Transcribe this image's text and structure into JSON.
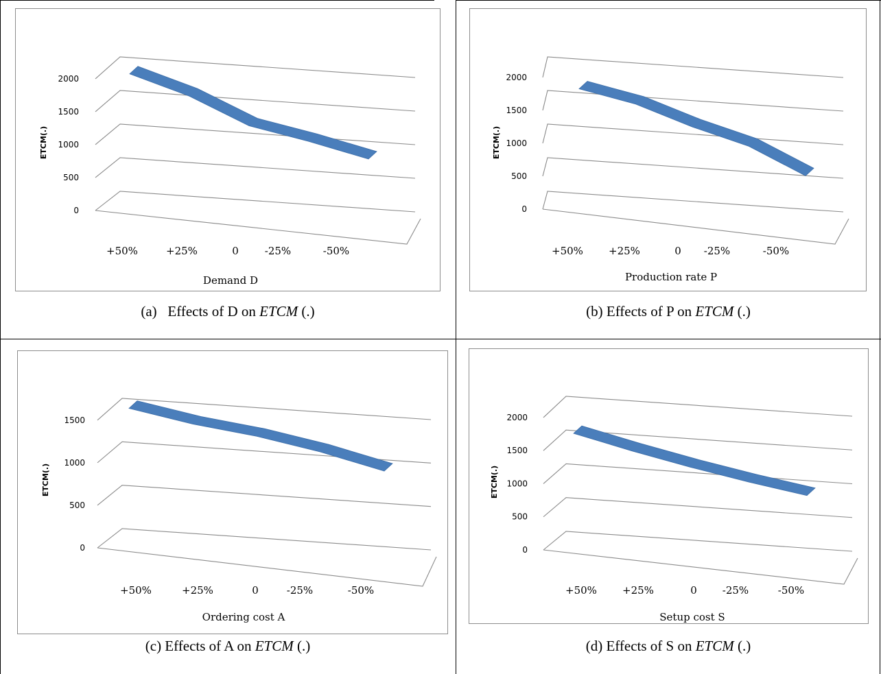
{
  "chart_data": [
    {
      "type": "line",
      "caption_prefix": "(a)   Effects of D on ",
      "caption_italic": "ETCM",
      "caption_suffix": " (.)",
      "xlabel": "Demand D",
      "ylabel": "ETCM(.)",
      "categories": [
        "+50%",
        "+25%",
        "0",
        "-25%",
        "-50%"
      ],
      "yticks": [
        0,
        500,
        1000,
        1500,
        2000
      ],
      "ylim": [
        0,
        2000
      ],
      "values": [
        1900,
        1630,
        1250,
        1080,
        880
      ],
      "color": "#4a7ebb"
    },
    {
      "type": "line",
      "caption_prefix": "(b) Effects of P on ",
      "caption_italic": "ETCM",
      "caption_suffix": " (.)",
      "xlabel": "Production rate P",
      "ylabel": "ETCM(.)",
      "categories": [
        "+50%",
        "+25%",
        "0",
        "-25%",
        "-50%"
      ],
      "yticks": [
        0,
        500,
        1000,
        1500,
        2000
      ],
      "ylim": [
        0,
        2000
      ],
      "values": [
        1700,
        1530,
        1250,
        1020,
        640
      ],
      "color": "#4a7ebb"
    },
    {
      "type": "line",
      "caption_prefix": "(c) Effects of A on ",
      "caption_italic": "ETCM",
      "caption_suffix": " (.)",
      "xlabel": "Ordering cost A",
      "ylabel": "ETCM(.)",
      "categories": [
        "+50%",
        "+25%",
        "0",
        "-25%",
        "-50%"
      ],
      "yticks": [
        0,
        500,
        1000,
        1500
      ],
      "ylim": [
        0,
        1500
      ],
      "values": [
        1500,
        1370,
        1280,
        1150,
        980
      ],
      "color": "#4a7ebb"
    },
    {
      "type": "line",
      "caption_prefix": "(d) Effects of S on ",
      "caption_italic": "ETCM",
      "caption_suffix": " (.)",
      "xlabel": "Setup cost S",
      "ylabel": "ETCM(.)",
      "categories": [
        "+50%",
        "+25%",
        "0",
        "-25%",
        "-50%"
      ],
      "yticks": [
        0,
        500,
        1000,
        1500,
        2000
      ],
      "ylim": [
        0,
        2000
      ],
      "values": [
        1600,
        1400,
        1220,
        1060,
        920
      ],
      "color": "#4a7ebb"
    }
  ]
}
